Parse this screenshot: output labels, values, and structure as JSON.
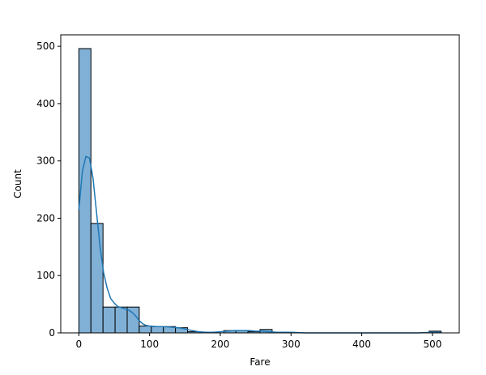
{
  "chart_data": {
    "type": "bar",
    "subtype": "histogram-with-kde",
    "title": "",
    "xlabel": "Fare",
    "ylabel": "Count",
    "xlim": [
      -25.6,
      537.9
    ],
    "ylim": [
      0,
      520
    ],
    "x_ticks": [
      0,
      100,
      200,
      300,
      400,
      500
    ],
    "x_tick_labels": [
      "0",
      "100",
      "200",
      "300",
      "400",
      "500"
    ],
    "y_ticks": [
      0,
      100,
      200,
      300,
      400,
      500
    ],
    "y_tick_labels": [
      "0",
      "100",
      "200",
      "300",
      "400",
      "500"
    ],
    "grid": false,
    "legend": "none",
    "bar_color": "#80b0d6",
    "bar_edge_color": "#000000",
    "kde_color": "#1f77b4",
    "bins": [
      {
        "x0": 0.0,
        "x1": 17.08,
        "count": 496
      },
      {
        "x0": 17.08,
        "x1": 34.16,
        "count": 191
      },
      {
        "x0": 34.16,
        "x1": 51.23,
        "count": 45
      },
      {
        "x0": 51.23,
        "x1": 68.31,
        "count": 45
      },
      {
        "x0": 68.31,
        "x1": 85.39,
        "count": 45
      },
      {
        "x0": 85.39,
        "x1": 102.47,
        "count": 12
      },
      {
        "x0": 102.47,
        "x1": 119.55,
        "count": 11
      },
      {
        "x0": 119.55,
        "x1": 136.62,
        "count": 11
      },
      {
        "x0": 136.62,
        "x1": 153.7,
        "count": 9
      },
      {
        "x0": 153.7,
        "x1": 170.78,
        "count": 2
      },
      {
        "x0": 170.78,
        "x1": 187.86,
        "count": 0
      },
      {
        "x0": 187.86,
        "x1": 204.94,
        "count": 0
      },
      {
        "x0": 204.94,
        "x1": 222.01,
        "count": 4
      },
      {
        "x0": 222.01,
        "x1": 239.09,
        "count": 4
      },
      {
        "x0": 239.09,
        "x1": 256.17,
        "count": 2
      },
      {
        "x0": 256.17,
        "x1": 273.25,
        "count": 6
      },
      {
        "x0": 273.25,
        "x1": 290.33,
        "count": 0
      },
      {
        "x0": 290.33,
        "x1": 307.4,
        "count": 0
      },
      {
        "x0": 307.4,
        "x1": 324.48,
        "count": 0
      },
      {
        "x0": 324.48,
        "x1": 341.56,
        "count": 0
      },
      {
        "x0": 341.56,
        "x1": 358.64,
        "count": 0
      },
      {
        "x0": 358.64,
        "x1": 375.72,
        "count": 0
      },
      {
        "x0": 375.72,
        "x1": 392.79,
        "count": 0
      },
      {
        "x0": 392.79,
        "x1": 409.87,
        "count": 0
      },
      {
        "x0": 409.87,
        "x1": 426.95,
        "count": 0
      },
      {
        "x0": 426.95,
        "x1": 444.03,
        "count": 0
      },
      {
        "x0": 444.03,
        "x1": 461.11,
        "count": 0
      },
      {
        "x0": 461.11,
        "x1": 478.18,
        "count": 0
      },
      {
        "x0": 478.18,
        "x1": 495.26,
        "count": 0
      },
      {
        "x0": 495.26,
        "x1": 512.33,
        "count": 3
      }
    ],
    "kde": {
      "x": [
        0,
        5,
        10,
        15,
        20,
        25,
        30,
        35,
        40,
        45,
        50,
        55,
        60,
        65,
        70,
        75,
        80,
        85,
        90,
        95,
        100,
        110,
        120,
        130,
        140,
        150,
        160,
        170,
        180,
        190,
        200,
        210,
        220,
        230,
        240,
        250,
        260,
        270,
        280,
        290,
        300,
        320,
        340,
        360,
        380,
        400,
        420,
        440,
        460,
        480,
        500,
        512
      ],
      "y": [
        215,
        282,
        308,
        305,
        270,
        210,
        150,
        105,
        78,
        60,
        52,
        46,
        44,
        42,
        40,
        36,
        30,
        22,
        16,
        13,
        12,
        11,
        11,
        10,
        9,
        7,
        4,
        2,
        1,
        1,
        2,
        3,
        4,
        4,
        4,
        3,
        3,
        2,
        1,
        1,
        1,
        0,
        0,
        0,
        0,
        0,
        0,
        0,
        0,
        0,
        1,
        1
      ]
    }
  }
}
